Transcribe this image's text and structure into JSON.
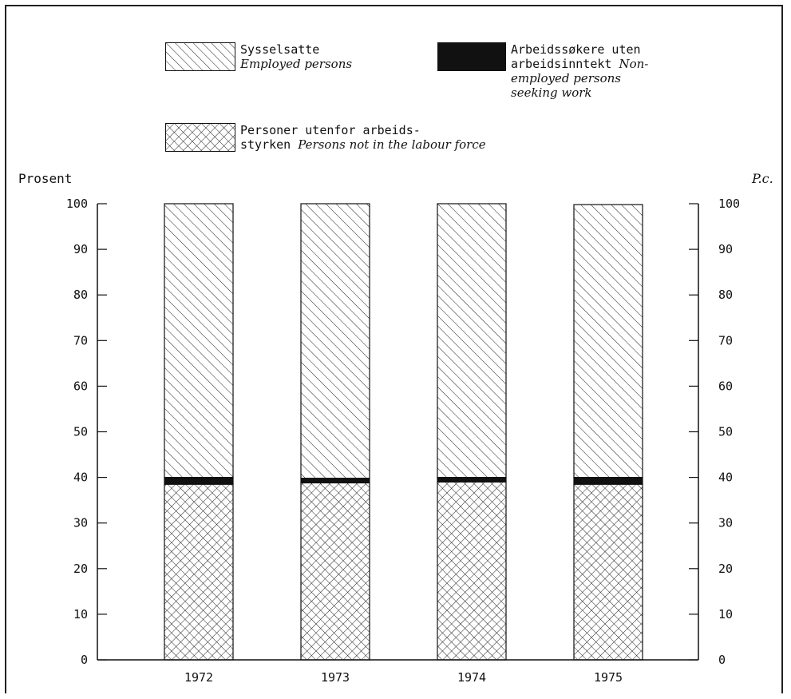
{
  "legend": {
    "employed": {
      "no": "Sysselsatte",
      "en": "Employed persons"
    },
    "seeking": {
      "no_lines": [
        "Arbeidssøkere uten",
        "arbeidsinntekt "
      ],
      "en_lines": [
        "Non-",
        "employed persons",
        "seeking work"
      ]
    },
    "not_in_force": {
      "no_lines": [
        "Personer utenfor arbeids-",
        "styrken "
      ],
      "en": "Persons not in the labour force"
    }
  },
  "axes": {
    "left_unit": "Prosent",
    "right_unit": "P.c."
  },
  "colors": {
    "ink": "#111111",
    "background": "#ffffff"
  },
  "chart_data": {
    "type": "bar",
    "stacked": true,
    "categories": [
      "1972",
      "1973",
      "1974",
      "1975"
    ],
    "series": [
      {
        "name": "Personer utenfor arbeidsstyrken / Persons not in the labour force",
        "pattern": "crosshatch",
        "values": [
          38.5,
          38.8,
          39.0,
          38.5
        ]
      },
      {
        "name": "Arbeidssøkere uten arbeidsinntekt / Non-employed persons seeking work",
        "pattern": "solid-black",
        "values": [
          1.5,
          1.0,
          1.0,
          1.5
        ]
      },
      {
        "name": "Sysselsatte / Employed persons",
        "pattern": "diagonal-hatch",
        "values": [
          60.0,
          60.2,
          60.0,
          59.8
        ]
      }
    ],
    "ylim": [
      0,
      100
    ],
    "yticks": [
      "0",
      "10",
      "20",
      "30",
      "40",
      "50",
      "60",
      "70",
      "80",
      "90",
      "100"
    ],
    "ylabel_left": "Prosent",
    "ylabel_right": "P.c.",
    "grid": false,
    "legend_position": "top"
  }
}
